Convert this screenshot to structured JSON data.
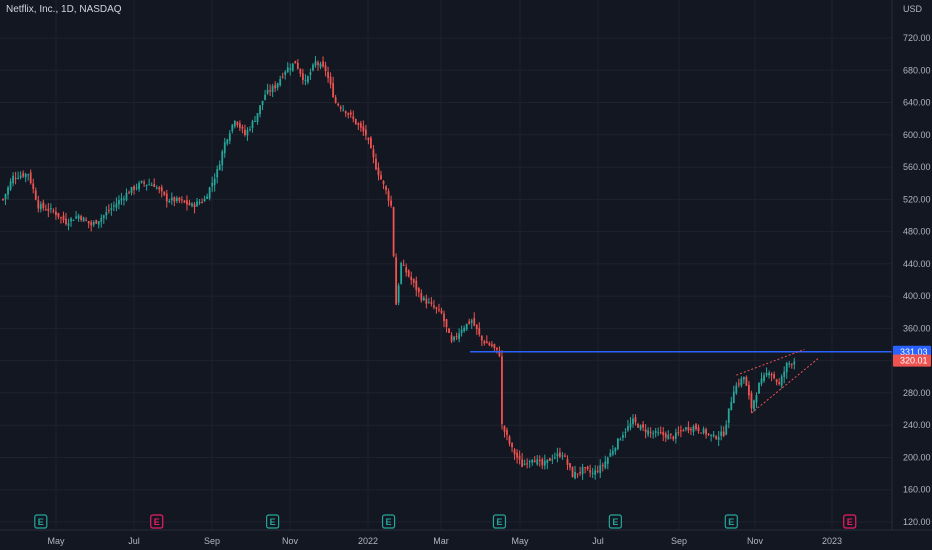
{
  "title": "Netflix, Inc., 1D, NASDAQ",
  "colors": {
    "background": "#131722",
    "up": "#26a69a",
    "down": "#ef5350",
    "axis_text": "#b2b5be",
    "grid": "#1e222d",
    "resistance": "#2962ff",
    "wedge": "#ef5350",
    "earnings_past": "#26a69a",
    "earnings_future": "#e91e63"
  },
  "chart_data": {
    "type": "candlestick",
    "currency": "USD",
    "x_labels": [
      "May",
      "Jul",
      "Sep",
      "Nov",
      "2022",
      "Mar",
      "May",
      "Jul",
      "Sep",
      "Nov",
      "2023"
    ],
    "y_ticks": [
      120,
      160,
      200,
      240,
      280,
      320,
      360,
      400,
      440,
      480,
      520,
      560,
      600,
      640,
      680,
      720
    ],
    "ylim": [
      112,
      738
    ],
    "anchors": [
      [
        0,
        520
      ],
      [
        4,
        548
      ],
      [
        10,
        552
      ],
      [
        14,
        512
      ],
      [
        20,
        505
      ],
      [
        25,
        492
      ],
      [
        30,
        500
      ],
      [
        35,
        488
      ],
      [
        40,
        500
      ],
      [
        45,
        515
      ],
      [
        50,
        530
      ],
      [
        55,
        540
      ],
      [
        60,
        538
      ],
      [
        65,
        520
      ],
      [
        70,
        518
      ],
      [
        75,
        512
      ],
      [
        80,
        520
      ],
      [
        85,
        555
      ],
      [
        88,
        590
      ],
      [
        92,
        620
      ],
      [
        96,
        600
      ],
      [
        100,
        620
      ],
      [
        104,
        650
      ],
      [
        108,
        660
      ],
      [
        112,
        680
      ],
      [
        116,
        690
      ],
      [
        120,
        665
      ],
      [
        124,
        690
      ],
      [
        128,
        680
      ],
      [
        132,
        640
      ],
      [
        136,
        630
      ],
      [
        140,
        615
      ],
      [
        144,
        600
      ],
      [
        148,
        560
      ],
      [
        152,
        530
      ],
      [
        154,
        512
      ],
      [
        156,
        390
      ],
      [
        158,
        440
      ],
      [
        162,
        420
      ],
      [
        166,
        398
      ],
      [
        170,
        388
      ],
      [
        174,
        378
      ],
      [
        178,
        342
      ],
      [
        182,
        360
      ],
      [
        186,
        370
      ],
      [
        190,
        345
      ],
      [
        194,
        338
      ],
      [
        197,
        328
      ],
      [
        198,
        240
      ],
      [
        202,
        210
      ],
      [
        206,
        190
      ],
      [
        210,
        200
      ],
      [
        214,
        190
      ],
      [
        218,
        200
      ],
      [
        222,
        205
      ],
      [
        226,
        178
      ],
      [
        230,
        185
      ],
      [
        234,
        180
      ],
      [
        238,
        190
      ],
      [
        242,
        210
      ],
      [
        246,
        230
      ],
      [
        250,
        245
      ],
      [
        254,
        235
      ],
      [
        258,
        230
      ],
      [
        262,
        228
      ],
      [
        266,
        225
      ],
      [
        270,
        235
      ],
      [
        274,
        238
      ],
      [
        278,
        232
      ],
      [
        282,
        225
      ],
      [
        286,
        230
      ],
      [
        290,
        285
      ],
      [
        294,
        300
      ],
      [
        297,
        262
      ],
      [
        300,
        290
      ],
      [
        304,
        308
      ],
      [
        308,
        290
      ],
      [
        311,
        315
      ],
      [
        314,
        320
      ]
    ],
    "last_bar_index": 314,
    "resistance_price": 331.03,
    "last_price": 320.01,
    "price_labels": [
      "331.03",
      "320.01"
    ],
    "wedge": {
      "upper": [
        [
          291,
          302
        ],
        [
          318,
          334
        ]
      ],
      "lower": [
        [
          297,
          255
        ],
        [
          324,
          324
        ]
      ]
    },
    "earnings_markers": [
      {
        "letter": "E",
        "x_index": 15,
        "type": "past"
      },
      {
        "letter": "E",
        "x_index": 61,
        "type": "future"
      },
      {
        "letter": "E",
        "x_index": 107,
        "type": "past"
      },
      {
        "letter": "E",
        "x_index": 153,
        "type": "past"
      },
      {
        "letter": "E",
        "x_index": 197,
        "type": "past"
      },
      {
        "letter": "E",
        "x_index": 243,
        "type": "past"
      },
      {
        "letter": "E",
        "x_index": 289,
        "type": "past"
      },
      {
        "letter": "E",
        "x_index": 336,
        "type": "future"
      }
    ]
  }
}
